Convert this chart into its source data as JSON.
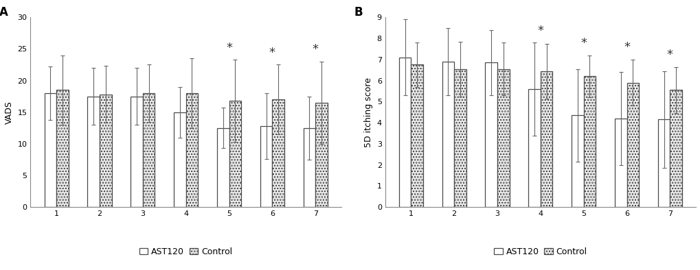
{
  "panel_A": {
    "title": "A",
    "ylabel": "VADS",
    "ylim": [
      0,
      30
    ],
    "yticks": [
      0,
      5,
      10,
      15,
      20,
      25,
      30
    ],
    "visits": [
      1,
      2,
      3,
      4,
      5,
      6,
      7
    ],
    "ast120_means": [
      18.0,
      17.5,
      17.5,
      15.0,
      12.5,
      12.8,
      12.5
    ],
    "ast120_errors": [
      4.2,
      4.5,
      4.5,
      4.0,
      3.2,
      5.2,
      5.0
    ],
    "control_means": [
      18.5,
      17.8,
      18.0,
      18.0,
      16.8,
      17.0,
      16.5
    ],
    "control_errors": [
      5.5,
      4.5,
      4.5,
      5.5,
      6.5,
      5.5,
      6.5
    ],
    "sig_visits": [
      5,
      6,
      7
    ]
  },
  "panel_B": {
    "title": "B",
    "ylabel": "5D itching score",
    "ylim": [
      0,
      9
    ],
    "yticks": [
      0,
      1,
      2,
      3,
      4,
      5,
      6,
      7,
      8,
      9
    ],
    "visits": [
      1,
      2,
      3,
      4,
      5,
      6,
      7
    ],
    "ast120_means": [
      7.1,
      6.9,
      6.85,
      5.6,
      4.35,
      4.2,
      4.15
    ],
    "ast120_errors": [
      1.8,
      1.6,
      1.55,
      2.2,
      2.2,
      2.2,
      2.3
    ],
    "control_means": [
      6.75,
      6.55,
      6.55,
      6.45,
      6.2,
      5.9,
      5.55
    ],
    "control_errors": [
      1.05,
      1.3,
      1.25,
      1.3,
      1.0,
      1.1,
      1.1
    ],
    "sig_visits": [
      4,
      5,
      6,
      7
    ]
  },
  "ast120_color": "#ffffff",
  "control_color": "#e8e8e8",
  "bar_edgecolor": "#4a4a4a",
  "error_color": "#666666",
  "bar_width": 0.28,
  "legend_labels": [
    "AST120",
    "Control"
  ],
  "background_color": "#ffffff",
  "fontsize": 9,
  "title_fontsize": 12,
  "label_fontsize": 9,
  "tick_fontsize": 8,
  "sig_fontsize": 13
}
